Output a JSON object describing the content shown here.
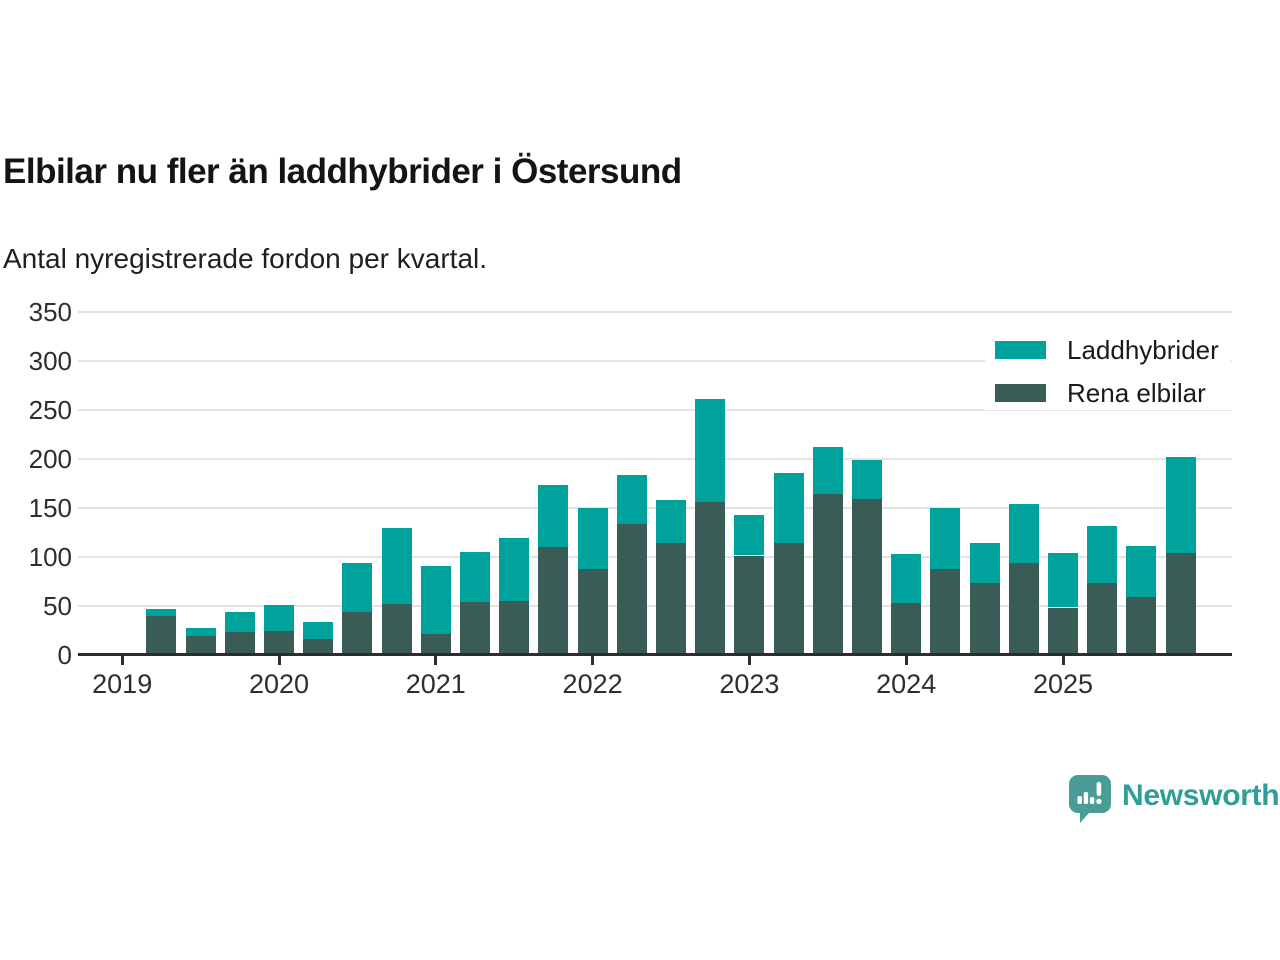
{
  "header": {
    "title": "Elbilar nu fler än laddhybrider i Östersund",
    "subtitle": "Antal nyregistrerade fordon per kvartal."
  },
  "legend": {
    "items": [
      {
        "label": "Laddhybrider",
        "color": "#00a39b"
      },
      {
        "label": "Rena elbilar",
        "color": "#3a5c57"
      }
    ]
  },
  "branding": {
    "logo_text": "Newsworthy",
    "logo_color": "#2f9e98",
    "icon": "newsworthy-speech-bubble-chart-icon",
    "icon_color": "#4a9d97"
  },
  "chart_data": {
    "type": "bar",
    "stacked": true,
    "title": "Elbilar nu fler än laddhybrider i Östersund",
    "subtitle": "Antal nyregistrerade fordon per kvartal.",
    "categories": [
      "2019 Q2",
      "2019 Q3",
      "2019 Q4",
      "2020 Q1",
      "2020 Q2",
      "2020 Q3",
      "2020 Q4",
      "2021 Q1",
      "2021 Q2",
      "2021 Q3",
      "2021 Q4",
      "2022 Q1",
      "2022 Q2",
      "2022 Q3",
      "2022 Q4",
      "2023 Q1",
      "2023 Q2",
      "2023 Q3",
      "2023 Q4",
      "2024 Q1",
      "2024 Q2",
      "2024 Q3",
      "2024 Q4",
      "2025 Q1",
      "2025 Q2",
      "2025 Q3",
      "2025 Q4"
    ],
    "series": [
      {
        "name": "Rena elbilar",
        "color": "#3a5c57",
        "values": [
          39,
          19,
          23,
          24,
          16,
          43,
          52,
          21,
          54,
          55,
          110,
          87,
          133,
          114,
          156,
          101,
          114,
          164,
          159,
          53,
          87,
          73,
          93,
          48,
          73,
          59,
          104
        ]
      },
      {
        "name": "Laddhybrider",
        "color": "#00a39b",
        "values": [
          7,
          8,
          20,
          27,
          17,
          50,
          77,
          69,
          51,
          64,
          63,
          63,
          50,
          44,
          105,
          41,
          71,
          48,
          40,
          50,
          63,
          41,
          61,
          56,
          58,
          52,
          98
        ]
      }
    ],
    "totals": [
      46,
      27,
      43,
      51,
      33,
      93,
      129,
      90,
      105,
      119,
      173,
      150,
      183,
      158,
      261,
      142,
      185,
      212,
      199,
      103,
      150,
      114,
      154,
      104,
      131,
      111,
      202
    ],
    "xtick_labels": [
      "2019",
      "2020",
      "2021",
      "2022",
      "2023",
      "2024",
      "2025"
    ],
    "yticks": [
      0,
      50,
      100,
      150,
      200,
      250,
      300,
      350
    ],
    "ylim": [
      0,
      350
    ],
    "grid": true,
    "legend_position": "top-right",
    "bar_colors": {
      "laddhybrider": "#00a39b",
      "rena_elbilar": "#3a5c57"
    },
    "axis_color": "#2d2d2d",
    "grid_color": "#e4e4e4"
  }
}
